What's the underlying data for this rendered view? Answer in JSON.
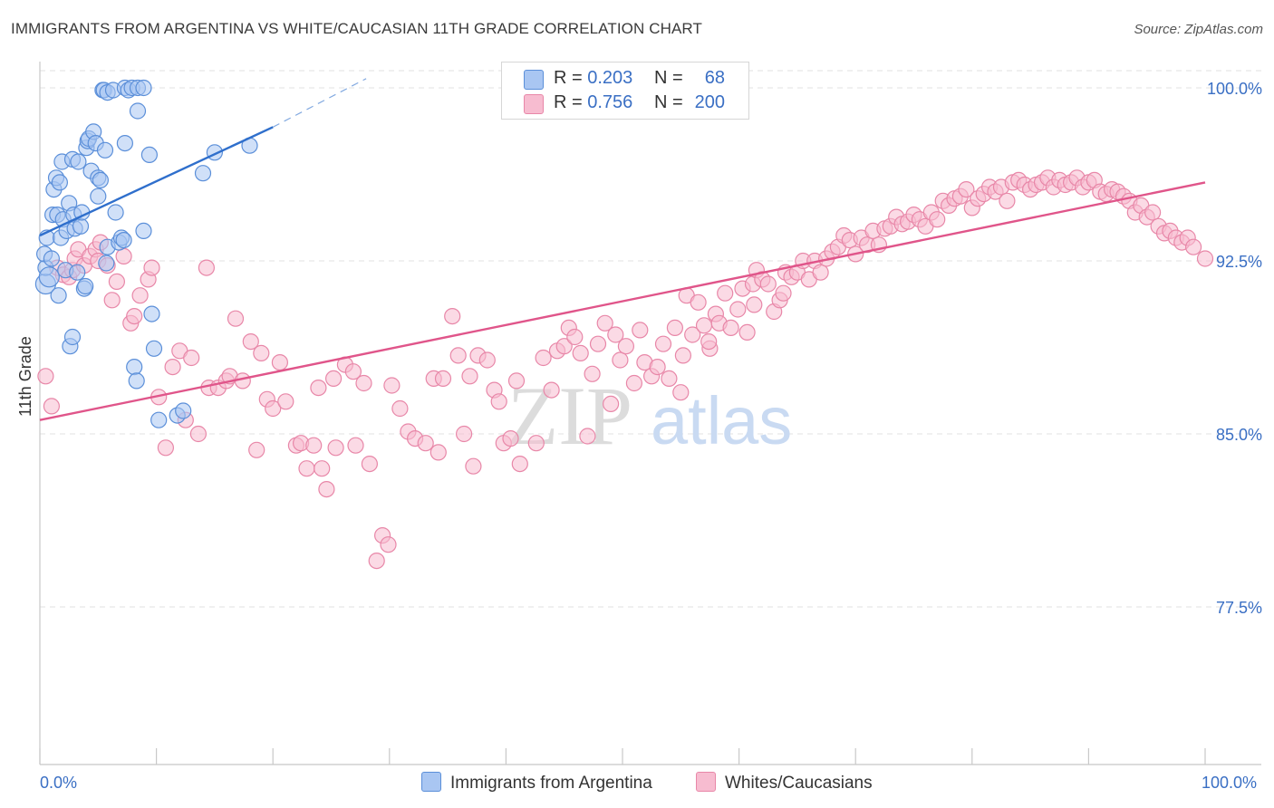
{
  "title": "IMMIGRANTS FROM ARGENTINA VS WHITE/CAUCASIAN 11TH GRADE CORRELATION CHART",
  "source": "Source: ZipAtlas.com",
  "watermark": {
    "zip": "ZIP",
    "atlas": "atlas"
  },
  "legend": {
    "rows": [
      {
        "r_label": "R =",
        "r_value": "0.203",
        "n_label": "N =",
        "n_value": "68",
        "color": "#a9c6f2",
        "stroke": "#5b8fd9"
      },
      {
        "r_label": "R =",
        "r_value": "0.756",
        "n_label": "N =",
        "n_value": "200",
        "color": "#f7bcd0",
        "stroke": "#e887a8"
      }
    ]
  },
  "bottom_legend": {
    "items": [
      {
        "label": "Immigrants from Argentina",
        "color": "#a9c6f2",
        "stroke": "#5b8fd9"
      },
      {
        "label": "Whites/Caucasians",
        "color": "#f7bcd0",
        "stroke": "#e887a8"
      }
    ]
  },
  "chart_data": {
    "type": "scatter",
    "title": "IMMIGRANTS FROM ARGENTINA VS WHITE/CAUCASIAN 11TH GRADE CORRELATION CHART",
    "xlabel": "",
    "ylabel": "11th Grade",
    "xlim": [
      0,
      100
    ],
    "ylim": [
      70,
      100.8
    ],
    "x_tick_labels": [
      "0.0%",
      "100.0%"
    ],
    "y_ticks": [
      77.5,
      85.0,
      92.5,
      100.0
    ],
    "y_tick_labels": [
      "77.5%",
      "85.0%",
      "92.5%",
      "100.0%"
    ],
    "grid": true,
    "legend_position": "top-center",
    "series": [
      {
        "name": "Immigrants from Argentina",
        "color": "#a9c6f2",
        "stroke": "#5b8fd9",
        "trend": {
          "x0": 0,
          "y0": 93.6,
          "x1": 20,
          "y1": 98.3,
          "dash_to_x": 28,
          "dash_to_y": 100.4,
          "color": "#2f6fcc"
        },
        "points": [
          [
            0.5,
            91.5
          ],
          [
            0.5,
            92.2
          ],
          [
            0.4,
            92.8
          ],
          [
            0.6,
            93.5
          ],
          [
            0.8,
            91.8
          ],
          [
            1.0,
            92.6
          ],
          [
            1.1,
            94.5
          ],
          [
            1.2,
            95.6
          ],
          [
            1.4,
            96.1
          ],
          [
            1.5,
            94.5
          ],
          [
            1.8,
            93.5
          ],
          [
            1.7,
            95.9
          ],
          [
            1.6,
            91.0
          ],
          [
            1.9,
            96.8
          ],
          [
            2.0,
            94.3
          ],
          [
            2.2,
            92.1
          ],
          [
            2.3,
            93.8
          ],
          [
            2.5,
            95.0
          ],
          [
            2.6,
            88.8
          ],
          [
            2.8,
            89.2
          ],
          [
            2.8,
            96.9
          ],
          [
            2.9,
            94.5
          ],
          [
            3.0,
            93.9
          ],
          [
            3.2,
            92.0
          ],
          [
            3.3,
            96.8
          ],
          [
            3.5,
            94.0
          ],
          [
            3.6,
            94.6
          ],
          [
            3.8,
            91.3
          ],
          [
            3.9,
            91.4
          ],
          [
            4.0,
            97.4
          ],
          [
            4.1,
            97.7
          ],
          [
            4.2,
            97.8
          ],
          [
            4.4,
            96.4
          ],
          [
            4.6,
            98.1
          ],
          [
            4.8,
            97.6
          ],
          [
            5.0,
            96.1
          ],
          [
            5.0,
            95.3
          ],
          [
            5.2,
            96.0
          ],
          [
            5.4,
            99.9
          ],
          [
            5.5,
            99.9
          ],
          [
            5.6,
            97.3
          ],
          [
            5.7,
            92.4
          ],
          [
            5.8,
            93.1
          ],
          [
            5.8,
            99.8
          ],
          [
            6.3,
            99.9
          ],
          [
            6.5,
            94.6
          ],
          [
            6.8,
            93.3
          ],
          [
            7.0,
            93.5
          ],
          [
            7.2,
            93.4
          ],
          [
            7.3,
            97.6
          ],
          [
            7.3,
            100.0
          ],
          [
            7.6,
            99.9
          ],
          [
            7.9,
            100.0
          ],
          [
            8.1,
            87.9
          ],
          [
            8.3,
            87.3
          ],
          [
            8.4,
            99.0
          ],
          [
            8.4,
            100.0
          ],
          [
            8.9,
            100.0
          ],
          [
            8.9,
            93.8
          ],
          [
            9.4,
            97.1
          ],
          [
            9.6,
            90.2
          ],
          [
            9.8,
            88.7
          ],
          [
            10.2,
            85.6
          ],
          [
            11.8,
            85.8
          ],
          [
            12.3,
            86.0
          ],
          [
            14.0,
            96.3
          ],
          [
            15.0,
            97.2
          ],
          [
            18.0,
            97.5
          ]
        ]
      },
      {
        "name": "Whites/Caucasians",
        "color": "#f7bcd0",
        "stroke": "#e887a8",
        "trend": {
          "x0": 0,
          "y0": 85.6,
          "x1": 100,
          "y1": 95.9,
          "color": "#e0558a"
        },
        "points": [
          [
            0.5,
            87.5
          ],
          [
            1.0,
            86.2
          ],
          [
            1.5,
            92.2
          ],
          [
            2.0,
            91.9
          ],
          [
            2.5,
            91.8
          ],
          [
            2.8,
            92.1
          ],
          [
            3.0,
            92.6
          ],
          [
            3.3,
            93.0
          ],
          [
            3.8,
            92.3
          ],
          [
            4.3,
            92.7
          ],
          [
            4.8,
            93.0
          ],
          [
            5.0,
            92.5
          ],
          [
            5.2,
            93.3
          ],
          [
            5.8,
            92.3
          ],
          [
            6.2,
            90.8
          ],
          [
            6.6,
            91.6
          ],
          [
            7.2,
            92.7
          ],
          [
            7.8,
            89.8
          ],
          [
            8.1,
            90.1
          ],
          [
            8.6,
            91.0
          ],
          [
            9.3,
            91.7
          ],
          [
            9.6,
            92.2
          ],
          [
            10.2,
            86.6
          ],
          [
            10.8,
            84.4
          ],
          [
            11.4,
            87.9
          ],
          [
            12.0,
            88.6
          ],
          [
            12.5,
            85.6
          ],
          [
            13.0,
            88.3
          ],
          [
            13.6,
            85.0
          ],
          [
            14.3,
            92.2
          ],
          [
            14.5,
            87.0
          ],
          [
            15.3,
            87.0
          ],
          [
            16.0,
            87.3
          ],
          [
            16.3,
            87.5
          ],
          [
            16.8,
            90.0
          ],
          [
            17.4,
            87.3
          ],
          [
            18.1,
            89.0
          ],
          [
            18.6,
            84.3
          ],
          [
            19.0,
            88.5
          ],
          [
            19.5,
            86.5
          ],
          [
            20.0,
            86.1
          ],
          [
            20.6,
            88.1
          ],
          [
            21.1,
            86.4
          ],
          [
            22.0,
            84.5
          ],
          [
            22.4,
            84.6
          ],
          [
            22.9,
            83.5
          ],
          [
            23.5,
            84.5
          ],
          [
            23.9,
            87.0
          ],
          [
            24.2,
            83.5
          ],
          [
            24.6,
            82.6
          ],
          [
            25.2,
            87.4
          ],
          [
            25.4,
            84.4
          ],
          [
            26.2,
            88.0
          ],
          [
            26.9,
            87.7
          ],
          [
            27.1,
            84.5
          ],
          [
            27.8,
            87.2
          ],
          [
            28.3,
            83.7
          ],
          [
            28.9,
            79.5
          ],
          [
            29.4,
            80.6
          ],
          [
            29.9,
            80.2
          ],
          [
            30.2,
            87.1
          ],
          [
            30.9,
            86.1
          ],
          [
            31.6,
            85.1
          ],
          [
            32.2,
            84.8
          ],
          [
            33.1,
            84.6
          ],
          [
            33.8,
            87.4
          ],
          [
            34.2,
            84.2
          ],
          [
            34.6,
            87.4
          ],
          [
            35.4,
            90.1
          ],
          [
            35.9,
            88.4
          ],
          [
            36.4,
            85.0
          ],
          [
            36.9,
            87.5
          ],
          [
            37.2,
            83.6
          ],
          [
            37.6,
            88.4
          ],
          [
            38.4,
            88.2
          ],
          [
            39.0,
            86.9
          ],
          [
            39.4,
            86.4
          ],
          [
            39.8,
            84.6
          ],
          [
            40.4,
            84.8
          ],
          [
            40.9,
            87.3
          ],
          [
            41.2,
            83.7
          ],
          [
            42.6,
            84.6
          ],
          [
            43.2,
            88.3
          ],
          [
            43.9,
            86.9
          ],
          [
            44.4,
            88.6
          ],
          [
            45.0,
            88.8
          ],
          [
            45.4,
            89.6
          ],
          [
            45.9,
            89.2
          ],
          [
            46.4,
            88.5
          ],
          [
            47.0,
            84.9
          ],
          [
            47.4,
            87.6
          ],
          [
            47.9,
            88.9
          ],
          [
            48.5,
            89.8
          ],
          [
            49.0,
            86.3
          ],
          [
            49.4,
            89.3
          ],
          [
            49.8,
            88.2
          ],
          [
            50.3,
            88.8
          ],
          [
            51.0,
            87.2
          ],
          [
            51.5,
            89.5
          ],
          [
            51.9,
            88.1
          ],
          [
            52.5,
            87.5
          ],
          [
            53.0,
            87.9
          ],
          [
            53.5,
            88.9
          ],
          [
            54.0,
            87.4
          ],
          [
            54.5,
            89.6
          ],
          [
            55.0,
            86.8
          ],
          [
            55.5,
            91.0
          ],
          [
            56.0,
            89.3
          ],
          [
            56.5,
            90.7
          ],
          [
            57.0,
            89.7
          ],
          [
            57.5,
            88.7
          ],
          [
            58.0,
            90.2
          ],
          [
            58.3,
            89.8
          ],
          [
            58.8,
            91.1
          ],
          [
            59.3,
            89.6
          ],
          [
            59.9,
            90.4
          ],
          [
            60.3,
            91.3
          ],
          [
            60.7,
            89.4
          ],
          [
            61.2,
            91.5
          ],
          [
            61.5,
            92.1
          ],
          [
            62.0,
            91.7
          ],
          [
            62.5,
            91.5
          ],
          [
            63.0,
            90.3
          ],
          [
            63.5,
            90.8
          ],
          [
            64.0,
            92.0
          ],
          [
            64.5,
            91.8
          ],
          [
            65.0,
            92.0
          ],
          [
            65.5,
            92.5
          ],
          [
            66.0,
            91.7
          ],
          [
            66.5,
            92.5
          ],
          [
            67.0,
            92.0
          ],
          [
            67.5,
            92.6
          ],
          [
            68.0,
            92.9
          ],
          [
            68.5,
            93.1
          ],
          [
            69.0,
            93.6
          ],
          [
            69.5,
            93.4
          ],
          [
            70.0,
            92.8
          ],
          [
            70.5,
            93.5
          ],
          [
            71.0,
            93.2
          ],
          [
            71.5,
            93.8
          ],
          [
            72.0,
            93.2
          ],
          [
            72.5,
            93.9
          ],
          [
            73.0,
            94.0
          ],
          [
            73.5,
            94.4
          ],
          [
            74.0,
            94.1
          ],
          [
            74.5,
            94.2
          ],
          [
            75.0,
            94.5
          ],
          [
            75.5,
            94.3
          ],
          [
            76.0,
            94.0
          ],
          [
            76.5,
            94.6
          ],
          [
            77.0,
            94.3
          ],
          [
            77.5,
            95.1
          ],
          [
            78.0,
            94.9
          ],
          [
            78.5,
            95.2
          ],
          [
            79.0,
            95.3
          ],
          [
            79.5,
            95.6
          ],
          [
            80.0,
            94.8
          ],
          [
            80.5,
            95.2
          ],
          [
            81.0,
            95.4
          ],
          [
            81.5,
            95.7
          ],
          [
            82.0,
            95.5
          ],
          [
            82.5,
            95.7
          ],
          [
            83.0,
            95.1
          ],
          [
            83.5,
            95.9
          ],
          [
            84.0,
            96.0
          ],
          [
            84.5,
            95.8
          ],
          [
            85.0,
            95.6
          ],
          [
            85.5,
            95.8
          ],
          [
            86.0,
            95.9
          ],
          [
            86.5,
            96.1
          ],
          [
            87.0,
            95.7
          ],
          [
            87.5,
            96.0
          ],
          [
            88.0,
            95.8
          ],
          [
            88.5,
            95.9
          ],
          [
            89.0,
            96.1
          ],
          [
            89.5,
            95.7
          ],
          [
            90.0,
            95.9
          ],
          [
            90.5,
            96.0
          ],
          [
            91.0,
            95.5
          ],
          [
            91.5,
            95.4
          ],
          [
            92.0,
            95.6
          ],
          [
            92.5,
            95.5
          ],
          [
            93.0,
            95.3
          ],
          [
            93.5,
            95.1
          ],
          [
            94.0,
            94.6
          ],
          [
            94.5,
            94.9
          ],
          [
            95.0,
            94.4
          ],
          [
            95.5,
            94.6
          ],
          [
            96.0,
            94.0
          ],
          [
            96.5,
            93.7
          ],
          [
            97.0,
            93.8
          ],
          [
            97.5,
            93.5
          ],
          [
            98.0,
            93.3
          ],
          [
            98.5,
            93.5
          ],
          [
            99.0,
            93.1
          ],
          [
            100.0,
            92.6
          ],
          [
            55.2,
            88.4
          ],
          [
            57.4,
            89.0
          ],
          [
            61.3,
            90.6
          ],
          [
            63.8,
            91.1
          ]
        ]
      }
    ]
  }
}
